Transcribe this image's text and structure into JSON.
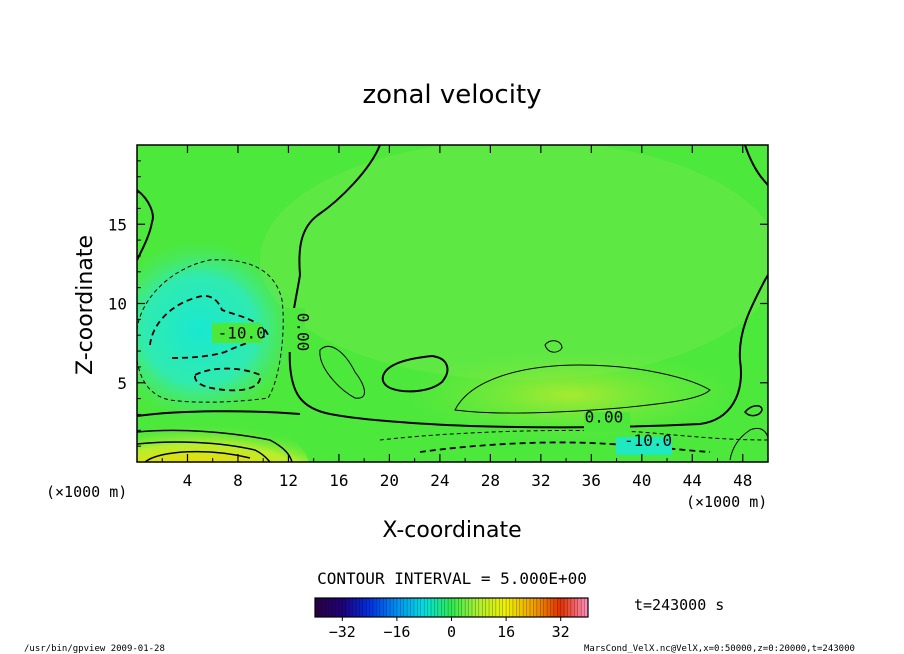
{
  "chart_data": {
    "type": "heatmap",
    "title": "zonal velocity",
    "xlabel": "X-coordinate",
    "ylabel": "Z-coordinate",
    "x_unit_label": "(×1000 m)",
    "y_unit_label": "(×1000 m)",
    "xlim": [
      0,
      50
    ],
    "ylim": [
      0,
      20
    ],
    "x_ticks": [
      4,
      8,
      12,
      16,
      20,
      24,
      28,
      32,
      36,
      40,
      44,
      48
    ],
    "y_ticks": [
      5,
      10,
      15
    ],
    "contour_interval_text": "CONTOUR INTERVAL = 5.000E+00",
    "time_text": "t=243000 s",
    "contour_labels": [
      {
        "text": "-10.0",
        "x": 8.3,
        "y": 7.8
      },
      {
        "text": "0.00",
        "x": 12.7,
        "y": 8.2,
        "rotate": 90
      },
      {
        "text": "0.00",
        "x": 37.0,
        "y": 2.5
      },
      {
        "text": "-10.0",
        "x": 40.5,
        "y": 1.0
      }
    ],
    "colorbar": {
      "min": -40,
      "max": 40,
      "ticks": [
        -32,
        -16,
        0,
        16,
        32
      ],
      "stops": [
        {
          "v": -40,
          "c": "#2a0040"
        },
        {
          "v": -32,
          "c": "#20007a"
        },
        {
          "v": -24,
          "c": "#0030e0"
        },
        {
          "v": -16,
          "c": "#0090f0"
        },
        {
          "v": -8,
          "c": "#00e0e0"
        },
        {
          "v": 0,
          "c": "#30ea50"
        },
        {
          "v": 8,
          "c": "#b0f030"
        },
        {
          "v": 16,
          "c": "#f0f000"
        },
        {
          "v": 24,
          "c": "#f0a000"
        },
        {
          "v": 32,
          "c": "#e03000"
        },
        {
          "v": 40,
          "c": "#ff90c0"
        }
      ]
    }
  },
  "footer": {
    "left": "/usr/bin/gpview  2009-01-28",
    "right": "MarsCond_VelX.nc@VelX,x=0:50000,z=0:20000,t=243000"
  }
}
